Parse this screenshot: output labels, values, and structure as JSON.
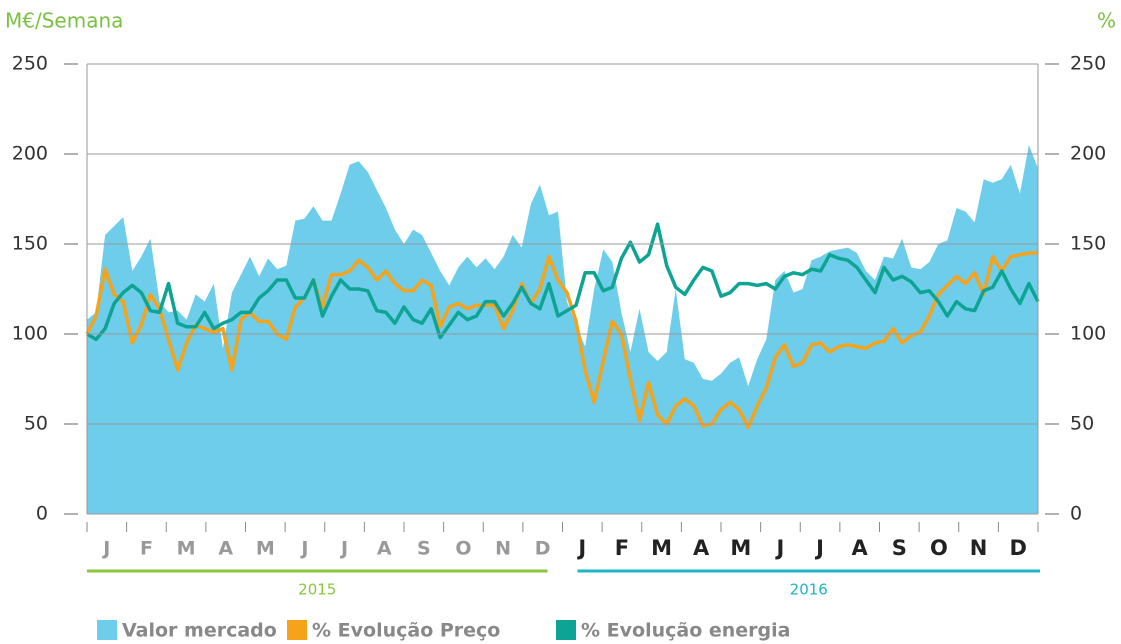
{
  "chart_data": {
    "type": "area_line",
    "y_label": "M€/Semana",
    "y2_label": "%",
    "ylim": [
      0,
      250
    ],
    "yticks": [
      0,
      50,
      100,
      150,
      200,
      250
    ],
    "y2lim": [
      0,
      250
    ],
    "y2ticks": [
      0,
      50,
      100,
      150,
      200,
      250
    ],
    "grid": true,
    "years": [
      {
        "label": "2015",
        "color": "#8cc63f",
        "months": [
          "J",
          "F",
          "M",
          "A",
          "M",
          "J",
          "J",
          "A",
          "S",
          "O",
          "N",
          "D"
        ]
      },
      {
        "label": "2016",
        "color": "#1fb5c6",
        "months": [
          "J",
          "F",
          "M",
          "A",
          "M",
          "J",
          "J",
          "A",
          "S",
          "O",
          "N",
          "D"
        ]
      }
    ],
    "series": [
      {
        "name": "Valor mercado",
        "type": "area",
        "color": "#6dcdea",
        "values": [
          108,
          112,
          155,
          160,
          165,
          135,
          143,
          153,
          118,
          112,
          113,
          108,
          122,
          118,
          128,
          92,
          123,
          133,
          143,
          132,
          142,
          136,
          138,
          163,
          164,
          171,
          163,
          163,
          178,
          194,
          196,
          190,
          180,
          170,
          158,
          150,
          158,
          155,
          145,
          135,
          127,
          137,
          143,
          137,
          142,
          136,
          143,
          155,
          148,
          172,
          183,
          166,
          168,
          118,
          105,
          93,
          125,
          147,
          140,
          112,
          90,
          114,
          90,
          85,
          90,
          125,
          86,
          84,
          75,
          74,
          78,
          84,
          87,
          71,
          86,
          97,
          130,
          135,
          123,
          125,
          141,
          143,
          146,
          147,
          148,
          145,
          135,
          130,
          143,
          142,
          153,
          137,
          136,
          140,
          150,
          152,
          170,
          168,
          162,
          186,
          184,
          186,
          194,
          178,
          205,
          192
        ]
      },
      {
        "name": "% Evolução Preço",
        "type": "line",
        "axis": "y2",
        "color": "#f5a31a",
        "values": [
          100,
          110,
          136,
          122,
          118,
          95,
          105,
          122,
          114,
          97,
          80,
          95,
          105,
          103,
          101,
          103,
          80,
          108,
          112,
          107,
          107,
          100,
          97,
          115,
          120,
          130,
          115,
          133,
          133,
          135,
          141,
          137,
          130,
          135,
          128,
          124,
          124,
          130,
          127,
          104,
          115,
          117,
          114,
          116,
          116,
          116,
          103,
          113,
          128,
          117,
          125,
          143,
          130,
          123,
          107,
          80,
          62,
          85,
          107,
          100,
          75,
          52,
          73,
          55,
          50,
          60,
          64,
          60,
          49,
          50,
          58,
          62,
          58,
          48,
          60,
          70,
          87,
          94,
          82,
          84,
          94,
          95,
          90,
          93,
          94,
          93,
          92,
          95,
          96,
          103,
          95,
          99,
          101,
          110,
          122,
          127,
          132,
          128,
          134,
          122,
          143,
          135,
          143,
          144,
          145,
          145
        ]
      },
      {
        "name": "% Evolução energia",
        "type": "line",
        "axis": "y2",
        "color": "#0ea493",
        "values": [
          100,
          97,
          103,
          117,
          123,
          127,
          123,
          113,
          112,
          128,
          106,
          104,
          104,
          112,
          103,
          106,
          108,
          112,
          112,
          120,
          124,
          130,
          130,
          120,
          120,
          130,
          110,
          121,
          130,
          125,
          125,
          124,
          113,
          112,
          106,
          115,
          108,
          106,
          114,
          98,
          105,
          112,
          108,
          110,
          118,
          118,
          110,
          117,
          126,
          117,
          114,
          128,
          110,
          113,
          116,
          134,
          134,
          124,
          126,
          142,
          151,
          140,
          144,
          161,
          138,
          126,
          122,
          130,
          137,
          135,
          121,
          123,
          128,
          128,
          127,
          128,
          125,
          132,
          134,
          133,
          136,
          135,
          144,
          142,
          141,
          137,
          130,
          123,
          137,
          130,
          132,
          129,
          123,
          124,
          118,
          110,
          118,
          114,
          113,
          124,
          126,
          135,
          125,
          117,
          128,
          118
        ]
      }
    ]
  }
}
